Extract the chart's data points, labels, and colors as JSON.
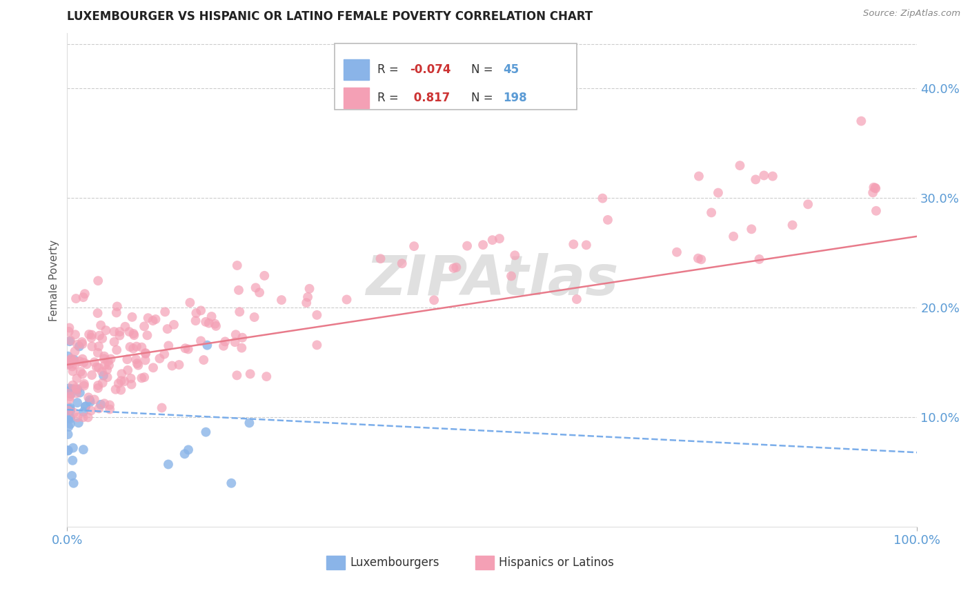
{
  "title": "LUXEMBOURGER VS HISPANIC OR LATINO FEMALE POVERTY CORRELATION CHART",
  "source_text": "Source: ZipAtlas.com",
  "ylabel": "Female Poverty",
  "xlim": [
    0,
    1.0
  ],
  "ylim": [
    0,
    0.45
  ],
  "yticks": [
    0.1,
    0.2,
    0.3,
    0.4
  ],
  "ytick_labels": [
    "10.0%",
    "20.0%",
    "30.0%",
    "40.0%"
  ],
  "xtick_labels": [
    "0.0%",
    "100.0%"
  ],
  "legend_r1": "-0.074",
  "legend_n1": "45",
  "legend_r2": "0.817",
  "legend_n2": "198",
  "color_blue": "#8ab4e8",
  "color_pink": "#f4a0b5",
  "line_blue": "#7aadea",
  "line_pink": "#e87a8a",
  "grid_color": "#cccccc",
  "title_color": "#222222",
  "source_color": "#888888",
  "ylabel_color": "#555555",
  "tick_color": "#5b9bd5",
  "legend_text_color": "#333333",
  "legend_r_color": "#cc3333",
  "legend_n_color": "#5b9bd5",
  "watermark": "ZIPAtlas",
  "watermark_color": "#e0e0e0",
  "blue_trend_start_y": 0.107,
  "blue_trend_end_y": 0.068,
  "pink_trend_start_y": 0.148,
  "pink_trend_end_y": 0.265
}
